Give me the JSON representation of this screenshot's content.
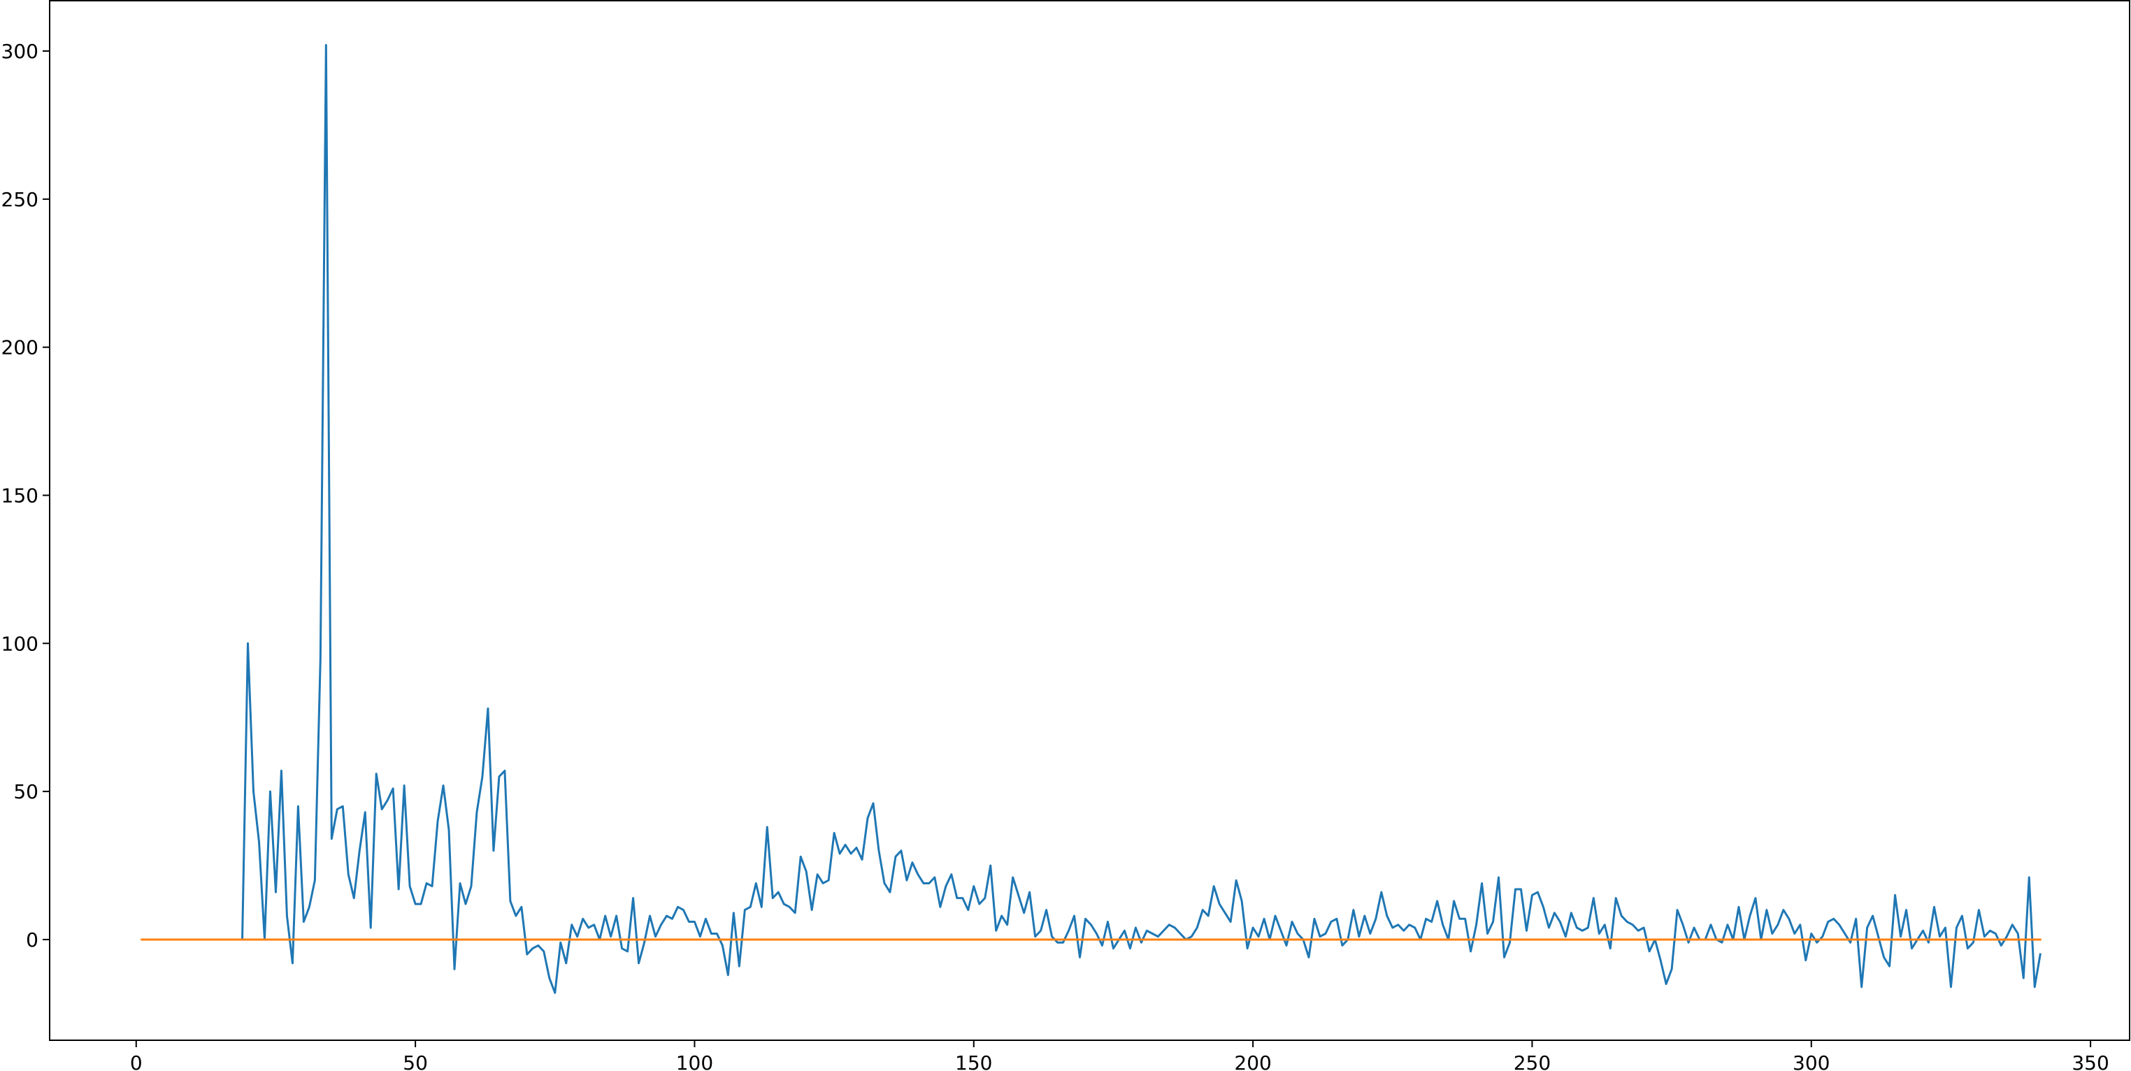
{
  "chart_data": {
    "type": "line",
    "title": "",
    "xlabel": "",
    "ylabel": "",
    "xlim": [
      -15.5,
      357
    ],
    "ylim": [
      -34,
      317
    ],
    "xticks": [
      0,
      50,
      100,
      150,
      200,
      250,
      300,
      350
    ],
    "xtick_labels": [
      "0",
      "50",
      "100",
      "150",
      "200",
      "250",
      "300",
      "350"
    ],
    "yticks": [
      0,
      50,
      100,
      150,
      200,
      250,
      300
    ],
    "ytick_labels": [
      "0",
      "50",
      "100",
      "150",
      "200",
      "250",
      "300"
    ],
    "grid": false,
    "legend": "none",
    "series": [
      {
        "color": "#1f77b4",
        "x_start": 19,
        "values": [
          0,
          100,
          50,
          33,
          0,
          50,
          16,
          57,
          8,
          -8,
          45,
          6,
          11,
          20,
          95,
          302,
          34,
          44,
          45,
          22,
          14,
          30,
          43,
          4,
          56,
          44,
          47,
          51,
          17,
          52,
          18,
          12,
          12,
          19,
          18,
          40,
          52,
          37,
          -10,
          19,
          12,
          18,
          43,
          55,
          78,
          30,
          55,
          57,
          13,
          8,
          11,
          -5,
          -3,
          -2,
          -4,
          -13,
          -18,
          -1,
          -8,
          5,
          1,
          7,
          4,
          5,
          0,
          8,
          1,
          8,
          -3,
          -4,
          14,
          -8,
          -1,
          8,
          1,
          5,
          8,
          7,
          11,
          10,
          6,
          6,
          1,
          7,
          2,
          2,
          -2,
          -12,
          9,
          -9,
          10,
          11,
          19,
          11,
          38,
          14,
          16,
          12,
          11,
          9,
          28,
          23,
          10,
          22,
          19,
          20,
          36,
          29,
          32,
          29,
          31,
          27,
          41,
          46,
          30,
          19,
          16,
          28,
          30,
          20,
          26,
          22,
          19,
          19,
          21,
          11,
          18,
          22,
          14,
          14,
          10,
          18,
          12,
          14,
          25,
          3,
          8,
          5,
          21,
          15,
          9,
          16,
          1,
          3,
          10,
          1,
          -1,
          -1,
          3,
          8,
          -6,
          7,
          5,
          2,
          -2,
          6,
          -3,
          0,
          3,
          -3,
          4,
          -1,
          3,
          2,
          1,
          3,
          5,
          4,
          2,
          0,
          1,
          4,
          10,
          8,
          18,
          12,
          9,
          6,
          20,
          13,
          -3,
          4,
          1,
          7,
          0,
          8,
          3,
          -2,
          6,
          2,
          0,
          -6,
          7,
          1,
          2,
          6,
          7,
          -2,
          0,
          10,
          1,
          8,
          2,
          7,
          16,
          8,
          4,
          5,
          3,
          5,
          4,
          0,
          7,
          6,
          13,
          5,
          0,
          13,
          7,
          7,
          -4,
          5,
          19,
          2,
          6,
          21,
          -6,
          -1,
          17,
          17,
          3,
          15,
          16,
          11,
          4,
          9,
          6,
          1,
          9,
          4,
          3,
          4,
          14,
          2,
          5,
          -3,
          14,
          8,
          6,
          5,
          3,
          4,
          -4,
          0,
          -7,
          -15,
          -10,
          10,
          5,
          -1,
          4,
          0,
          0,
          5,
          0,
          -1,
          5,
          0,
          11,
          0,
          8,
          14,
          0,
          10,
          2,
          5,
          10,
          7,
          2,
          5,
          -7,
          2,
          -1,
          1,
          6,
          7,
          5,
          2,
          -1,
          7,
          -16,
          4,
          8,
          1,
          -6,
          -9,
          15,
          1,
          10,
          -3,
          0,
          3,
          -1,
          11,
          1,
          4,
          -16,
          4,
          8,
          -3,
          -1,
          10,
          1,
          3,
          2,
          -2,
          1,
          5,
          2,
          -13,
          21,
          -16,
          -5
        ]
      },
      {
        "color": "#ff7f0e",
        "x": [
          1,
          341
        ],
        "values": [
          0,
          0
        ]
      }
    ]
  }
}
